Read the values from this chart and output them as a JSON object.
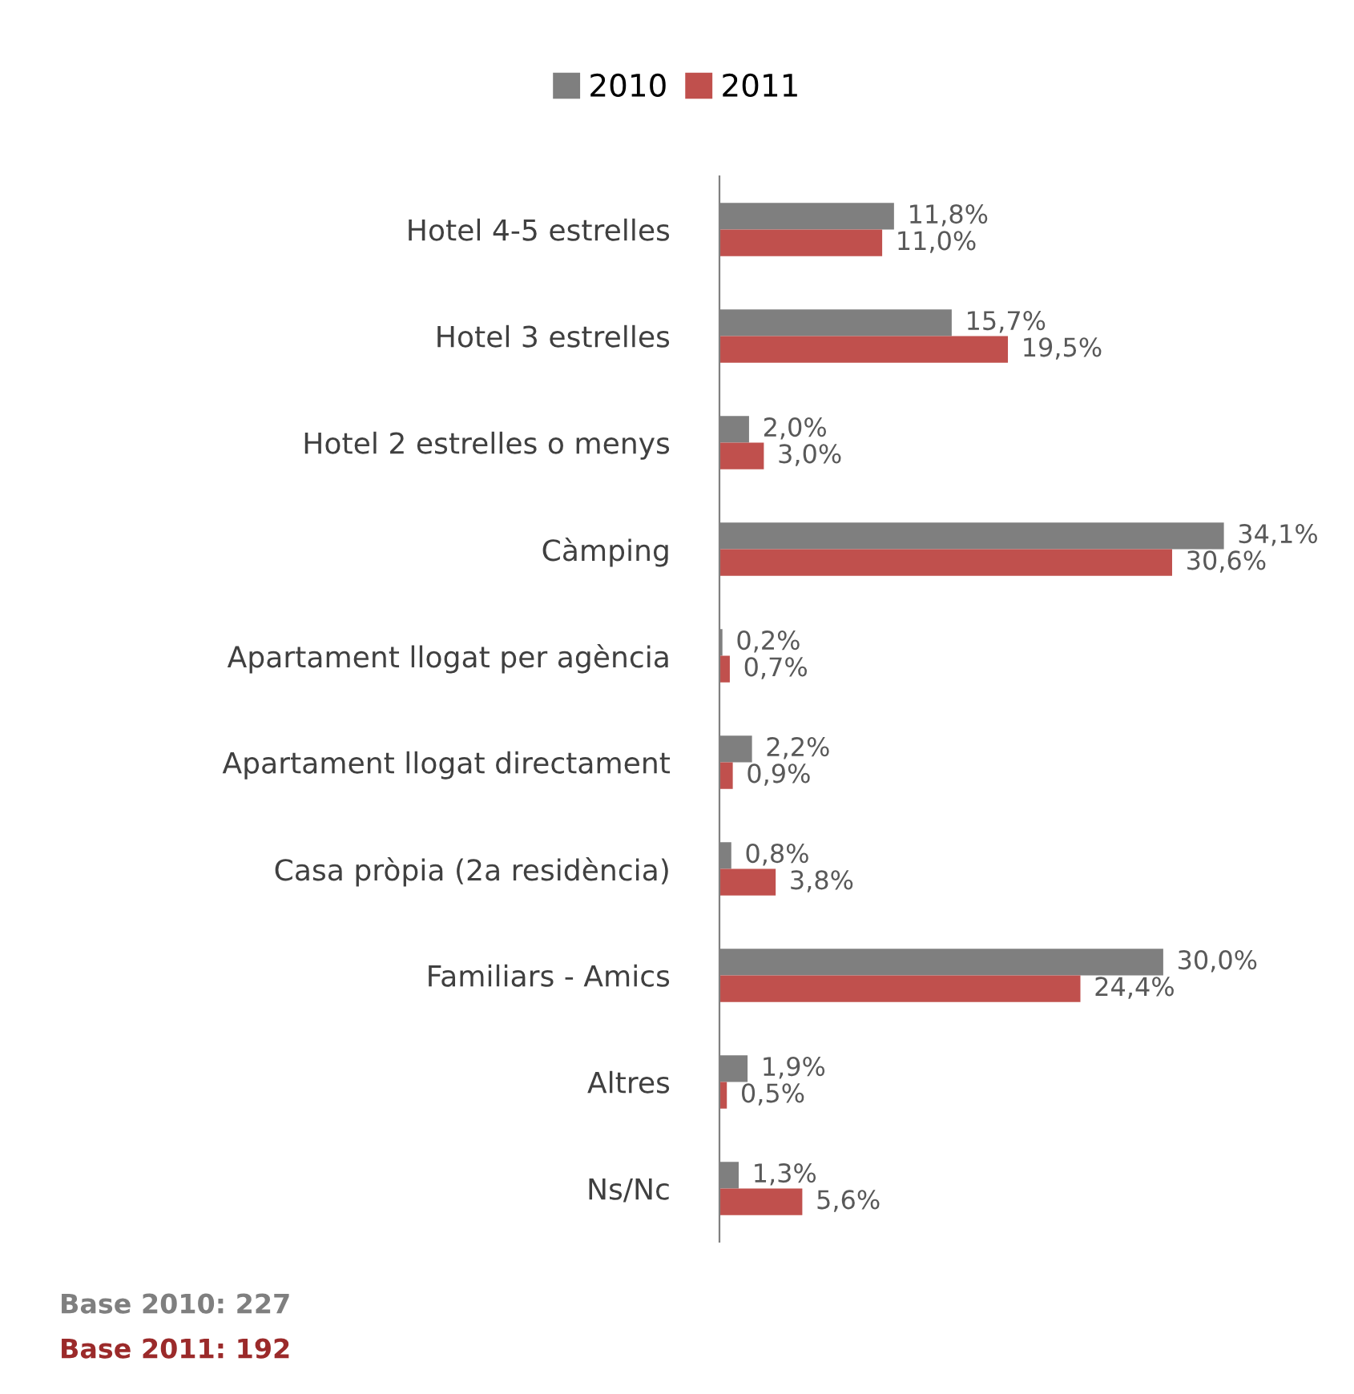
{
  "chart_data": {
    "type": "bar",
    "orientation": "horizontal",
    "legend": "top",
    "categories": [
      "Hotel 4-5 estrelles",
      "Hotel 3 estrelles",
      "Hotel 2 estrelles o menys",
      "Càmping",
      "Apartament llogat per agència",
      "Apartament llogat directament",
      "Casa pròpia (2a residència)",
      "Familiars - Amics",
      "Altres",
      "Ns/Nc"
    ],
    "series": [
      {
        "name": "2010",
        "color": "#7f7f7f",
        "values": [
          11.8,
          15.7,
          2.0,
          34.1,
          0.2,
          2.2,
          0.8,
          30.0,
          1.9,
          1.3
        ],
        "value_labels": [
          "11,8%",
          "15,7%",
          "2,0%",
          "34,1%",
          "0,2%",
          "2,2%",
          "0,8%",
          "30,0%",
          "1,9%",
          "1,3%"
        ]
      },
      {
        "name": "2011",
        "color": "#c0504d",
        "values": [
          11.0,
          19.5,
          3.0,
          30.6,
          0.7,
          0.9,
          3.8,
          24.4,
          0.5,
          5.6
        ],
        "value_labels": [
          "11,0%",
          "19,5%",
          "3,0%",
          "30,6%",
          "0,7%",
          "0,9%",
          "3,8%",
          "24,4%",
          "0,5%",
          "5,6%"
        ]
      }
    ],
    "annotations": [
      "Base 2010: 227",
      "Base 2011: 192"
    ]
  }
}
